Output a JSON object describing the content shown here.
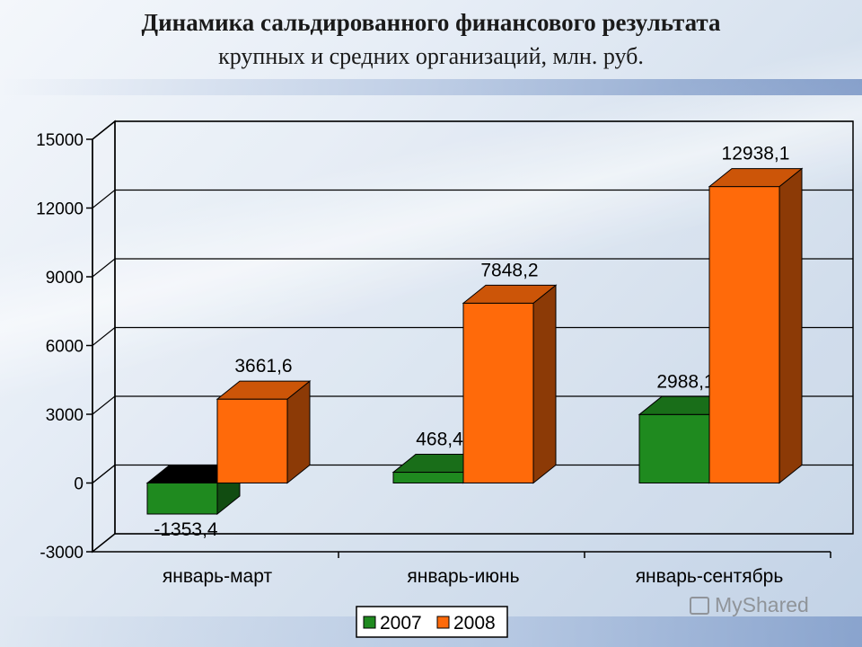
{
  "title": "Динамика сальдированного финансового результата",
  "subtitle": "крупных и средних организаций, млн. руб.",
  "watermark": "MyShared",
  "chart_data": {
    "type": "bar",
    "categories": [
      "январь-март",
      "январь-июнь",
      "январь-сентябрь"
    ],
    "series": [
      {
        "name": "2007",
        "values": [
          -1353.4,
          468.4,
          2988.1
        ],
        "labels": [
          "-1353,4",
          "468,4",
          "2988,1"
        ],
        "color": "#1f8a1f"
      },
      {
        "name": "2008",
        "values": [
          3661.6,
          7848.2,
          12938.1
        ],
        "labels": [
          "3661,6",
          "7848,2",
          "12938,1"
        ],
        "color": "#ff6a0a"
      }
    ],
    "ylim": [
      -3000,
      15000
    ],
    "yticks": [
      -3000,
      0,
      3000,
      6000,
      9000,
      12000,
      15000
    ],
    "grid": true,
    "legend_position": "bottom-center",
    "xlabel": "",
    "ylabel": ""
  }
}
